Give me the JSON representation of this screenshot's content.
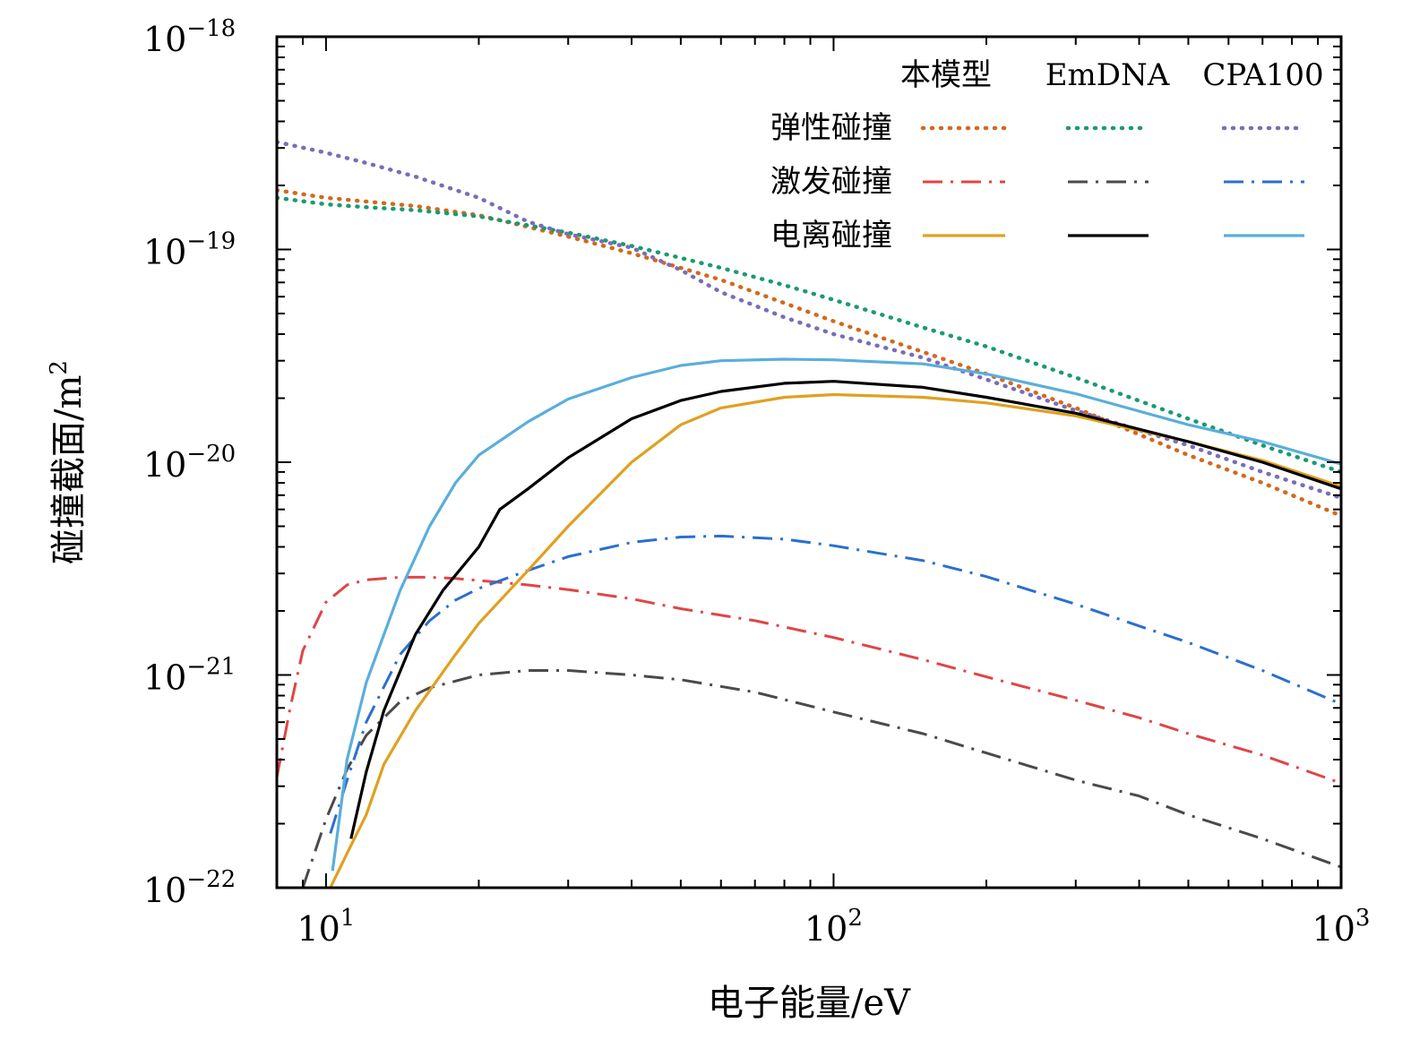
{
  "chart_data": {
    "type": "line",
    "title": "",
    "xlabel": "电子能量/eV",
    "ylabel": "碰撞截面/m",
    "ylabel_unit_exp": "2",
    "xscale": "log",
    "yscale": "log",
    "xlim": [
      8,
      1000
    ],
    "ylim": [
      1e-22,
      1e-18
    ],
    "x_ticks": [
      {
        "value": 10,
        "base": "10",
        "exp": "1"
      },
      {
        "value": 100,
        "base": "10",
        "exp": "2"
      },
      {
        "value": 1000,
        "base": "10",
        "exp": "3"
      }
    ],
    "y_ticks": [
      {
        "value": 1e-22,
        "base": "10",
        "exp": "−22"
      },
      {
        "value": 1e-21,
        "base": "10",
        "exp": "−21"
      },
      {
        "value": 1e-20,
        "base": "10",
        "exp": "−20"
      },
      {
        "value": 1e-19,
        "base": "10",
        "exp": "−19"
      },
      {
        "value": 1e-18,
        "base": "10",
        "exp": "−18"
      }
    ],
    "legend": {
      "placement": "top-right",
      "column_headers": [
        "本模型",
        "EmDNA",
        "CPA100"
      ],
      "row_labels": [
        "弹性碰撞",
        "激发碰撞",
        "电离碰撞"
      ]
    },
    "series": [
      {
        "name": "弹性碰撞 本模型",
        "color": "#d2691e",
        "style": "dotted",
        "x": [
          8,
          10,
          12,
          15,
          20,
          30,
          40,
          60,
          80,
          100,
          150,
          200,
          300,
          400,
          500,
          700,
          1000
        ],
        "y": [
          1.9e-19,
          1.75e-19,
          1.68e-19,
          1.6e-19,
          1.45e-19,
          1.15e-19,
          9.6e-20,
          7.2e-20,
          5.6e-20,
          4.6e-20,
          3.3e-20,
          2.6e-20,
          1.8e-20,
          1.35e-20,
          1.08e-20,
          8e-21,
          5.6e-21
        ]
      },
      {
        "name": "弹性碰撞 EmDNA",
        "color": "#1a9a72",
        "style": "dotted",
        "x": [
          8,
          10,
          12,
          15,
          20,
          30,
          40,
          60,
          80,
          100,
          150,
          200,
          300,
          500,
          700,
          1000
        ],
        "y": [
          1.75e-19,
          1.63e-19,
          1.58e-19,
          1.53e-19,
          1.43e-19,
          1.2e-19,
          1.04e-19,
          8.2e-20,
          6.8e-20,
          5.8e-20,
          4.3e-20,
          3.5e-20,
          2.5e-20,
          1.6e-20,
          1.2e-20,
          9e-21
        ]
      },
      {
        "name": "弹性碰撞 CPA100",
        "color": "#7a6db8",
        "style": "dotted",
        "x": [
          8,
          10,
          12,
          15,
          20,
          25,
          30,
          40,
          50,
          60,
          80,
          100,
          150,
          200,
          300,
          500,
          700,
          1000
        ],
        "y": [
          3.2e-19,
          2.85e-19,
          2.55e-19,
          2.2e-19,
          1.75e-19,
          1.35e-19,
          1.18e-19,
          1.02e-19,
          8e-20,
          6.3e-20,
          4.8e-20,
          4e-20,
          3.1e-20,
          2.45e-20,
          1.75e-20,
          1.2e-20,
          9e-21,
          6.8e-21
        ]
      },
      {
        "name": "激发碰撞 本模型",
        "color": "#e04545",
        "style": "dashdot",
        "x": [
          8,
          8.5,
          9,
          10,
          11,
          12,
          14,
          16,
          18,
          20,
          25,
          30,
          40,
          50,
          70,
          100,
          150,
          200,
          300,
          400,
          500,
          700,
          1000
        ],
        "y": [
          3.3e-22,
          7e-22,
          1.3e-21,
          2.2e-21,
          2.65e-21,
          2.8e-21,
          2.88e-21,
          2.88e-21,
          2.84e-21,
          2.78e-21,
          2.65e-21,
          2.52e-21,
          2.28e-21,
          2.05e-21,
          1.8e-21,
          1.5e-21,
          1.18e-21,
          9.8e-22,
          7.6e-22,
          6.3e-22,
          5.3e-22,
          4.2e-22,
          3.1e-22
        ]
      },
      {
        "name": "激发碰撞 EmDNA",
        "color": "#4a4a4a",
        "style": "dashdot",
        "x": [
          9,
          10,
          11,
          12,
          14,
          16,
          20,
          25,
          30,
          40,
          50,
          70,
          100,
          150,
          200,
          300,
          400,
          500,
          700,
          1000
        ],
        "y": [
          1e-22,
          2.1e-22,
          3.6e-22,
          5.2e-22,
          7.5e-22,
          8.7e-22,
          1e-21,
          1.05e-21,
          1.05e-21,
          1e-21,
          9.5e-22,
          8.3e-22,
          6.7e-22,
          5.3e-22,
          4.3e-22,
          3.2e-22,
          2.7e-22,
          2.2e-22,
          1.7e-22,
          1.25e-22
        ]
      },
      {
        "name": "激发碰撞 CPA100",
        "color": "#2b6fcf",
        "style": "dashdot",
        "x": [
          10.2,
          11,
          12,
          14,
          16,
          18,
          20,
          25,
          30,
          40,
          50,
          60,
          80,
          100,
          150,
          200,
          300,
          400,
          500,
          700,
          1000
        ],
        "y": [
          1.8e-22,
          3.2e-22,
          6e-22,
          1.25e-21,
          1.8e-21,
          2.25e-21,
          2.55e-21,
          3.1e-21,
          3.6e-21,
          4.2e-21,
          4.45e-21,
          4.5e-21,
          4.35e-21,
          4.05e-21,
          3.45e-21,
          2.9e-21,
          2.15e-21,
          1.7e-21,
          1.42e-21,
          1.05e-21,
          7.3e-22
        ]
      },
      {
        "name": "电离碰撞 本模型",
        "color": "#e0a020",
        "style": "solid",
        "x": [
          10.2,
          11,
          12,
          13,
          15,
          18,
          20,
          25,
          30,
          40,
          50,
          60,
          80,
          100,
          150,
          200,
          300,
          500,
          700,
          1000
        ],
        "y": [
          1e-22,
          1.45e-22,
          2.2e-22,
          3.8e-22,
          6.8e-22,
          1.25e-21,
          1.75e-21,
          3.1e-21,
          5e-21,
          1e-20,
          1.5e-20,
          1.8e-20,
          2.02e-20,
          2.08e-20,
          2.02e-20,
          1.9e-20,
          1.65e-20,
          1.25e-20,
          1.02e-20,
          7.7e-21
        ]
      },
      {
        "name": "电离碰撞 EmDNA",
        "color": "#000000",
        "style": "solid",
        "x": [
          11.2,
          12,
          13,
          15,
          17,
          20,
          22,
          25,
          30,
          40,
          50,
          60,
          80,
          100,
          150,
          200,
          300,
          500,
          700,
          1000
        ],
        "y": [
          1.7e-22,
          3.5e-22,
          6.8e-22,
          1.55e-21,
          2.5e-21,
          4e-21,
          6e-21,
          7.5e-21,
          1.05e-20,
          1.6e-20,
          1.95e-20,
          2.15e-20,
          2.35e-20,
          2.4e-20,
          2.25e-20,
          2.02e-20,
          1.7e-20,
          1.25e-20,
          1e-20,
          7.5e-21
        ]
      },
      {
        "name": "电离碰撞 CPA100",
        "color": "#5aaedc",
        "style": "solid",
        "x": [
          10.3,
          11,
          12,
          14,
          16,
          18,
          20,
          25,
          30,
          40,
          50,
          60,
          80,
          100,
          150,
          200,
          300,
          500,
          700,
          1000
        ],
        "y": [
          1.2e-22,
          4e-22,
          9.2e-22,
          2.5e-21,
          5e-21,
          8e-21,
          1.08e-20,
          1.55e-20,
          1.98e-20,
          2.5e-20,
          2.85e-20,
          3e-20,
          3.05e-20,
          3.03e-20,
          2.9e-20,
          2.6e-20,
          2.1e-20,
          1.5e-20,
          1.25e-20,
          9.8e-21
        ]
      }
    ]
  }
}
